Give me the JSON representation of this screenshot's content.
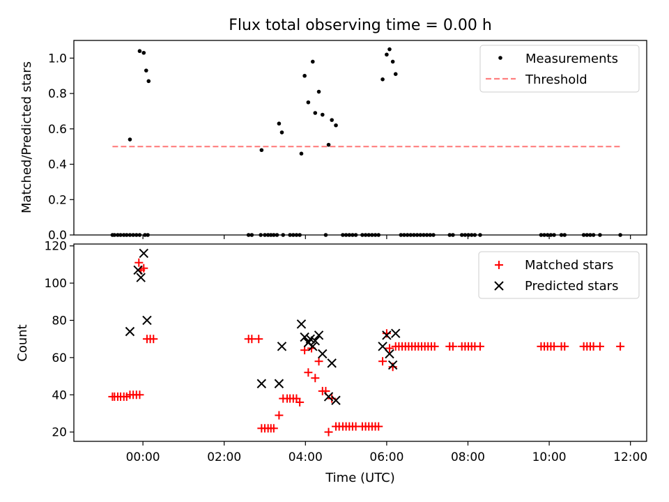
{
  "chart_data": [
    {
      "type": "scatter",
      "title": "Flux total observing time = 0.00 h",
      "xlabel": "",
      "ylabel": "Matched/Predicted stars",
      "x_unit": "hours (UTC)",
      "xlim": [
        -1.7,
        12.4
      ],
      "ylim": [
        0,
        1.1
      ],
      "yticks": [
        "0.0",
        "0.2",
        "0.4",
        "0.6",
        "0.8",
        "1.0"
      ],
      "grid": false,
      "legend": "top-right",
      "legend_labels": {
        "measurements": "Measurements",
        "threshold": "Threshold"
      },
      "threshold": {
        "value": 0.5,
        "x": [
          -0.75,
          11.75
        ],
        "color": "#ff7f7f",
        "style": "dashed"
      },
      "series": [
        {
          "name": "Measurements",
          "color": "#000000",
          "points": [
            [
              -0.75,
              0
            ],
            [
              -0.7,
              0
            ],
            [
              -0.62,
              0
            ],
            [
              -0.55,
              0
            ],
            [
              -0.47,
              0
            ],
            [
              -0.4,
              0
            ],
            [
              -0.32,
              0
            ],
            [
              -0.24,
              0
            ],
            [
              -0.16,
              0
            ],
            [
              -0.08,
              0
            ],
            [
              0.05,
              0
            ],
            [
              0.12,
              0
            ],
            [
              -0.32,
              0.54
            ],
            [
              -0.08,
              1.04
            ],
            [
              0.02,
              1.03
            ],
            [
              0.08,
              0.93
            ],
            [
              0.14,
              0.87
            ],
            [
              2.6,
              0
            ],
            [
              2.68,
              0
            ],
            [
              2.9,
              0
            ],
            [
              3.0,
              0
            ],
            [
              3.08,
              0
            ],
            [
              3.15,
              0
            ],
            [
              3.22,
              0
            ],
            [
              3.3,
              0
            ],
            [
              3.45,
              0
            ],
            [
              3.62,
              0
            ],
            [
              3.7,
              0
            ],
            [
              3.78,
              0
            ],
            [
              3.86,
              0
            ],
            [
              4.5,
              0
            ],
            [
              4.92,
              0
            ],
            [
              5.0,
              0
            ],
            [
              5.08,
              0
            ],
            [
              5.16,
              0
            ],
            [
              5.24,
              0
            ],
            [
              5.4,
              0
            ],
            [
              5.48,
              0
            ],
            [
              5.56,
              0
            ],
            [
              5.64,
              0
            ],
            [
              5.72,
              0
            ],
            [
              5.8,
              0
            ],
            [
              2.92,
              0.48
            ],
            [
              3.35,
              0.63
            ],
            [
              3.42,
              0.58
            ],
            [
              3.9,
              0.46
            ],
            [
              3.98,
              0.9
            ],
            [
              4.07,
              0.75
            ],
            [
              4.18,
              0.98
            ],
            [
              4.24,
              0.69
            ],
            [
              4.33,
              0.81
            ],
            [
              4.42,
              0.68
            ],
            [
              4.57,
              0.51
            ],
            [
              4.65,
              0.65
            ],
            [
              4.75,
              0.62
            ],
            [
              5.9,
              0.88
            ],
            [
              6.0,
              1.02
            ],
            [
              6.07,
              1.05
            ],
            [
              6.15,
              0.98
            ],
            [
              6.22,
              0.91
            ],
            [
              6.35,
              0
            ],
            [
              6.43,
              0
            ],
            [
              6.51,
              0
            ],
            [
              6.59,
              0
            ],
            [
              6.67,
              0
            ],
            [
              6.75,
              0
            ],
            [
              6.83,
              0
            ],
            [
              6.91,
              0
            ],
            [
              6.99,
              0
            ],
            [
              7.07,
              0
            ],
            [
              7.15,
              0
            ],
            [
              7.55,
              0
            ],
            [
              7.63,
              0
            ],
            [
              7.85,
              0
            ],
            [
              7.93,
              0
            ],
            [
              8.01,
              0
            ],
            [
              8.09,
              0
            ],
            [
              8.17,
              0
            ],
            [
              8.3,
              0
            ],
            [
              9.8,
              0
            ],
            [
              9.88,
              0
            ],
            [
              9.96,
              0
            ],
            [
              10.04,
              0
            ],
            [
              10.12,
              0
            ],
            [
              10.3,
              0
            ],
            [
              10.38,
              0
            ],
            [
              10.85,
              0
            ],
            [
              10.93,
              0
            ],
            [
              11.01,
              0
            ],
            [
              11.09,
              0
            ],
            [
              11.25,
              0
            ],
            [
              11.75,
              0
            ]
          ]
        }
      ]
    },
    {
      "type": "scatter",
      "title": "",
      "xlabel": "Time (UTC)",
      "ylabel": "Count",
      "x_unit": "hours (UTC)",
      "xlim": [
        -1.7,
        12.4
      ],
      "ylim": [
        15,
        121
      ],
      "yticks": [
        "20",
        "40",
        "60",
        "80",
        "100",
        "120"
      ],
      "xticks": [
        {
          "value": 0,
          "label": "00:00"
        },
        {
          "value": 2,
          "label": "02:00"
        },
        {
          "value": 4,
          "label": "04:00"
        },
        {
          "value": 6,
          "label": "06:00"
        },
        {
          "value": 8,
          "label": "08:00"
        },
        {
          "value": 10,
          "label": "10:00"
        },
        {
          "value": 12,
          "label": "12:00"
        }
      ],
      "grid": false,
      "legend": "top-right",
      "series": [
        {
          "name": "Matched stars",
          "color": "#ff0000",
          "marker": "plus",
          "points": [
            [
              -0.75,
              39
            ],
            [
              -0.7,
              39
            ],
            [
              -0.62,
              39
            ],
            [
              -0.55,
              39
            ],
            [
              -0.47,
              39
            ],
            [
              -0.4,
              39
            ],
            [
              -0.32,
              40
            ],
            [
              -0.24,
              40
            ],
            [
              -0.16,
              40
            ],
            [
              -0.08,
              40
            ],
            [
              -0.1,
              111
            ],
            [
              -0.05,
              107
            ],
            [
              0.02,
              108
            ],
            [
              0.1,
              70
            ],
            [
              0.18,
              70
            ],
            [
              0.26,
              70
            ],
            [
              2.6,
              70
            ],
            [
              2.68,
              70
            ],
            [
              2.85,
              70
            ],
            [
              2.92,
              22
            ],
            [
              3.0,
              22
            ],
            [
              3.08,
              22
            ],
            [
              3.15,
              22
            ],
            [
              3.22,
              22
            ],
            [
              3.35,
              29
            ],
            [
              3.45,
              38
            ],
            [
              3.55,
              38
            ],
            [
              3.62,
              38
            ],
            [
              3.7,
              38
            ],
            [
              3.78,
              38
            ],
            [
              3.86,
              36
            ],
            [
              3.98,
              64
            ],
            [
              4.07,
              52
            ],
            [
              4.15,
              65
            ],
            [
              4.24,
              49
            ],
            [
              4.33,
              58
            ],
            [
              4.42,
              42
            ],
            [
              4.5,
              42
            ],
            [
              4.57,
              20
            ],
            [
              4.65,
              38
            ],
            [
              4.75,
              23
            ],
            [
              4.83,
              23
            ],
            [
              4.92,
              23
            ],
            [
              5.0,
              23
            ],
            [
              5.08,
              23
            ],
            [
              5.16,
              23
            ],
            [
              5.24,
              23
            ],
            [
              5.4,
              23
            ],
            [
              5.48,
              23
            ],
            [
              5.56,
              23
            ],
            [
              5.64,
              23
            ],
            [
              5.72,
              23
            ],
            [
              5.8,
              23
            ],
            [
              5.9,
              58
            ],
            [
              6.0,
              73
            ],
            [
              6.07,
              65
            ],
            [
              6.15,
              55
            ],
            [
              6.22,
              66
            ],
            [
              6.3,
              66
            ],
            [
              6.38,
              66
            ],
            [
              6.46,
              66
            ],
            [
              6.54,
              66
            ],
            [
              6.62,
              66
            ],
            [
              6.7,
              66
            ],
            [
              6.78,
              66
            ],
            [
              6.86,
              66
            ],
            [
              6.94,
              66
            ],
            [
              7.02,
              66
            ],
            [
              7.1,
              66
            ],
            [
              7.18,
              66
            ],
            [
              7.55,
              66
            ],
            [
              7.63,
              66
            ],
            [
              7.85,
              66
            ],
            [
              7.93,
              66
            ],
            [
              8.01,
              66
            ],
            [
              8.09,
              66
            ],
            [
              8.17,
              66
            ],
            [
              8.3,
              66
            ],
            [
              9.8,
              66
            ],
            [
              9.88,
              66
            ],
            [
              9.96,
              66
            ],
            [
              10.04,
              66
            ],
            [
              10.12,
              66
            ],
            [
              10.3,
              66
            ],
            [
              10.38,
              66
            ],
            [
              10.85,
              66
            ],
            [
              10.93,
              66
            ],
            [
              11.01,
              66
            ],
            [
              11.09,
              66
            ],
            [
              11.25,
              66
            ],
            [
              11.75,
              66
            ]
          ]
        },
        {
          "name": "Predicted stars",
          "color": "#000000",
          "marker": "x",
          "points": [
            [
              -0.32,
              74
            ],
            [
              -0.12,
              107
            ],
            [
              -0.05,
              103
            ],
            [
              0.02,
              116
            ],
            [
              0.1,
              80
            ],
            [
              2.92,
              46
            ],
            [
              3.35,
              46
            ],
            [
              3.42,
              66
            ],
            [
              3.9,
              78
            ],
            [
              3.98,
              71
            ],
            [
              4.07,
              68
            ],
            [
              4.12,
              70
            ],
            [
              4.18,
              66
            ],
            [
              4.24,
              69
            ],
            [
              4.33,
              72
            ],
            [
              4.42,
              62
            ],
            [
              4.57,
              39
            ],
            [
              4.65,
              57
            ],
            [
              4.75,
              37
            ],
            [
              5.9,
              66
            ],
            [
              6.0,
              72
            ],
            [
              6.07,
              62
            ],
            [
              6.15,
              56
            ],
            [
              6.22,
              73
            ]
          ]
        }
      ]
    }
  ]
}
